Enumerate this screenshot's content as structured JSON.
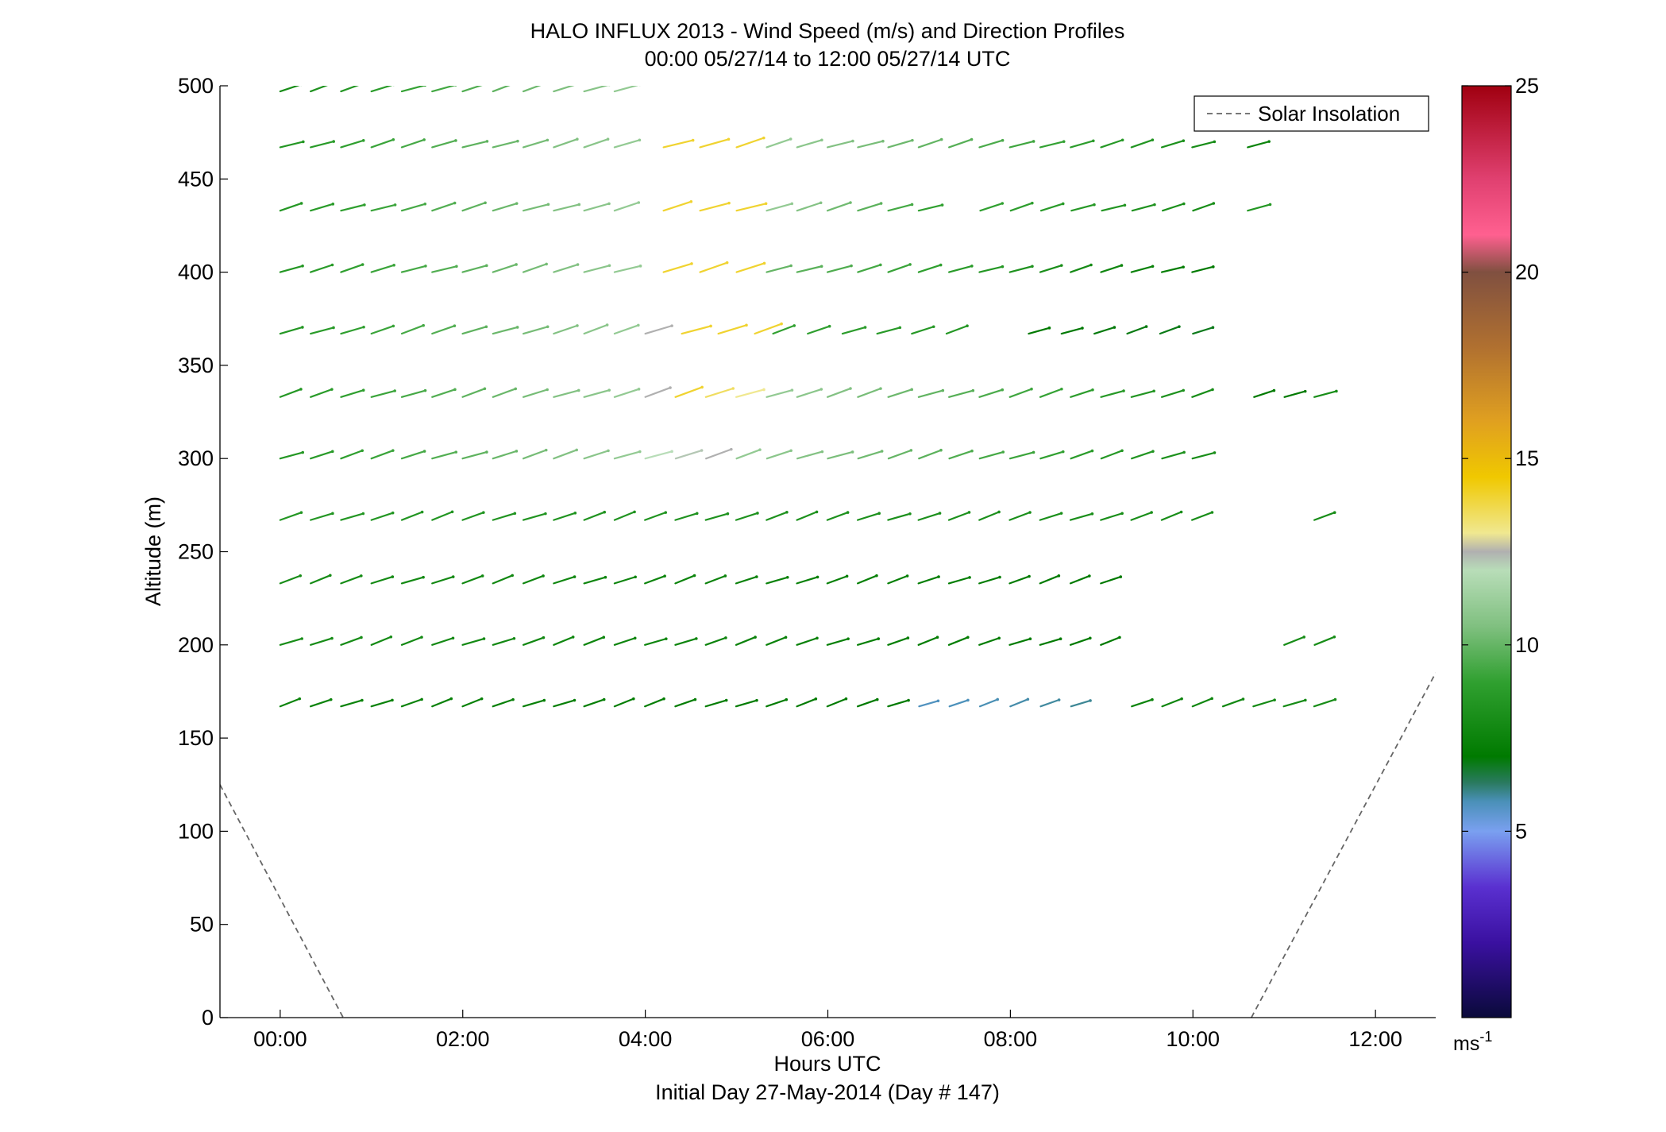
{
  "chart_data": {
    "type": "wind-barb-profile",
    "title": "HALO INFLUX 2013 - Wind Speed (m/s) and Direction Profiles",
    "subtitle": "00:00 05/27/14 to 12:00 05/27/14  UTC",
    "xlabel": "Hours UTC",
    "xlabel2": "Initial Day 27-May-2014 (Day # 147)",
    "ylabel": "Altitude (m)",
    "xlim_hours": [
      -0.66,
      12.66
    ],
    "ylim": [
      0,
      500
    ],
    "x_ticks": [
      {
        "hour": 0,
        "label": "00:00"
      },
      {
        "hour": 2,
        "label": "02:00"
      },
      {
        "hour": 4,
        "label": "04:00"
      },
      {
        "hour": 6,
        "label": "06:00"
      },
      {
        "hour": 8,
        "label": "08:00"
      },
      {
        "hour": 10,
        "label": "10:00"
      },
      {
        "hour": 12,
        "label": "12:00"
      }
    ],
    "y_ticks": [
      0,
      50,
      100,
      150,
      200,
      250,
      300,
      350,
      400,
      450,
      500
    ],
    "colorbar": {
      "min": 0,
      "max": 25,
      "ticks": [
        5,
        10,
        15,
        20,
        25
      ],
      "unit_base": "ms",
      "unit_exp": "-1",
      "stops": [
        {
          "v": 0,
          "c": "#0a0a3a"
        },
        {
          "v": 2,
          "c": "#3a10a0"
        },
        {
          "v": 3.5,
          "c": "#5a30d0"
        },
        {
          "v": 5,
          "c": "#7aa0f0"
        },
        {
          "v": 5.8,
          "c": "#4a90b8"
        },
        {
          "v": 6.3,
          "c": "#2a7a60"
        },
        {
          "v": 7,
          "c": "#007a00"
        },
        {
          "v": 9,
          "c": "#30a030"
        },
        {
          "v": 10.5,
          "c": "#80c080"
        },
        {
          "v": 12,
          "c": "#b8ddb8"
        },
        {
          "v": 12.5,
          "c": "#b0b0b0"
        },
        {
          "v": 13,
          "c": "#f0e890"
        },
        {
          "v": 14.5,
          "c": "#f0c800"
        },
        {
          "v": 16,
          "c": "#e0a020"
        },
        {
          "v": 18,
          "c": "#b07030"
        },
        {
          "v": 20,
          "c": "#805040"
        },
        {
          "v": 21,
          "c": "#ff6090"
        },
        {
          "v": 22.5,
          "c": "#e04070"
        },
        {
          "v": 25,
          "c": "#a00010"
        }
      ]
    },
    "legend": {
      "label": "Solar Insolation",
      "position": "top-right",
      "style": "dashed",
      "color": "#666666"
    },
    "solar_insolation": [
      {
        "name": "morning",
        "x_hours": [
          -0.66,
          0.69
        ],
        "y_m": [
          125,
          0
        ]
      },
      {
        "name": "evening",
        "x_hours": [
          10.64,
          12.66
        ],
        "y_m": [
          0,
          185
        ]
      }
    ],
    "altitudes_m": [
      497,
      467,
      433,
      400,
      367,
      333,
      300,
      267,
      233,
      200,
      167
    ],
    "wind_series": [
      {
        "alt": 497,
        "direction_deg": 240,
        "segments": [
          {
            "t_start": 0.0,
            "t_end": 3.5,
            "step": 0.333,
            "spd_start": 8.0,
            "spd_end": 11.0
          }
        ]
      },
      {
        "alt": 467,
        "direction_deg": 242,
        "segments": [
          {
            "t_start": 0.0,
            "t_end": 3.67,
            "step": 0.333,
            "spd_start": 8.5,
            "spd_end": 11.0
          },
          {
            "t_start": 4.2,
            "t_end": 5.0,
            "step": 0.4,
            "spd_start": 14.0,
            "spd_end": 14.0
          },
          {
            "t_start": 5.33,
            "t_end": 10.0,
            "step": 0.333,
            "spd_start": 11.0,
            "spd_end": 8.0
          },
          {
            "t_start": 10.6,
            "t_end": 10.6,
            "step": 1,
            "spd_start": 7.5,
            "spd_end": 7.5
          }
        ]
      },
      {
        "alt": 433,
        "direction_deg": 242,
        "segments": [
          {
            "t_start": 0.0,
            "t_end": 3.67,
            "step": 0.333,
            "spd_start": 8.5,
            "spd_end": 11.0
          },
          {
            "t_start": 4.2,
            "t_end": 5.0,
            "step": 0.4,
            "spd_start": 14.0,
            "spd_end": 14.0
          },
          {
            "t_start": 5.33,
            "t_end": 7.0,
            "step": 0.333,
            "spd_start": 11.0,
            "spd_end": 9.0
          },
          {
            "t_start": 7.67,
            "t_end": 10.0,
            "step": 0.333,
            "spd_start": 9.0,
            "spd_end": 8.0
          },
          {
            "t_start": 10.6,
            "t_end": 10.6,
            "step": 1,
            "spd_start": 8.5,
            "spd_end": 8.5
          }
        ]
      },
      {
        "alt": 400,
        "direction_deg": 242,
        "segments": [
          {
            "t_start": 0.0,
            "t_end": 3.67,
            "step": 0.333,
            "spd_start": 8.5,
            "spd_end": 11.0
          },
          {
            "t_start": 4.2,
            "t_end": 5.0,
            "step": 0.4,
            "spd_start": 14.0,
            "spd_end": 14.0
          },
          {
            "t_start": 5.33,
            "t_end": 10.0,
            "step": 0.333,
            "spd_start": 10.0,
            "spd_end": 7.0
          }
        ]
      },
      {
        "alt": 367,
        "direction_deg": 240,
        "segments": [
          {
            "t_start": 0.0,
            "t_end": 3.67,
            "step": 0.333,
            "spd_start": 8.5,
            "spd_end": 11.0
          },
          {
            "t_start": 4.0,
            "t_end": 4.0,
            "step": 1,
            "spd_start": 12.5,
            "spd_end": 12.5
          },
          {
            "t_start": 4.4,
            "t_end": 5.2,
            "step": 0.4,
            "spd_start": 14.0,
            "spd_end": 14.0
          },
          {
            "t_start": 5.4,
            "t_end": 7.3,
            "step": 0.38,
            "spd_start": 9.0,
            "spd_end": 8.5
          },
          {
            "t_start": 8.2,
            "t_end": 10.0,
            "step": 0.36,
            "spd_start": 7.0,
            "spd_end": 6.8
          }
        ]
      },
      {
        "alt": 333,
        "direction_deg": 240,
        "segments": [
          {
            "t_start": 0.0,
            "t_end": 3.67,
            "step": 0.333,
            "spd_start": 8.5,
            "spd_end": 11.0
          },
          {
            "t_start": 4.0,
            "t_end": 4.0,
            "step": 1,
            "spd_start": 12.5,
            "spd_end": 12.5
          },
          {
            "t_start": 4.33,
            "t_end": 5.0,
            "step": 0.333,
            "spd_start": 14.0,
            "spd_end": 13.0
          },
          {
            "t_start": 5.33,
            "t_end": 10.0,
            "step": 0.333,
            "spd_start": 11.0,
            "spd_end": 8.0
          },
          {
            "t_start": 10.67,
            "t_end": 11.0,
            "step": 0.333,
            "spd_start": 7.0,
            "spd_end": 7.0
          },
          {
            "t_start": 11.33,
            "t_end": 11.33,
            "step": 1,
            "spd_start": 8.0,
            "spd_end": 8.0
          }
        ]
      },
      {
        "alt": 300,
        "direction_deg": 240,
        "segments": [
          {
            "t_start": 0.0,
            "t_end": 3.67,
            "step": 0.333,
            "spd_start": 8.5,
            "spd_end": 11.0
          },
          {
            "t_start": 4.0,
            "t_end": 4.67,
            "step": 0.333,
            "spd_start": 12.0,
            "spd_end": 12.5
          },
          {
            "t_start": 5.0,
            "t_end": 10.0,
            "step": 0.333,
            "spd_start": 11.0,
            "spd_end": 8.0
          }
        ]
      },
      {
        "alt": 267,
        "direction_deg": 238,
        "segments": [
          {
            "t_start": 0.0,
            "t_end": 10.0,
            "step": 0.333,
            "spd_start": 8.5,
            "spd_end": 8.0
          },
          {
            "t_start": 11.33,
            "t_end": 11.33,
            "step": 1,
            "spd_start": 8.0,
            "spd_end": 8.0
          }
        ]
      },
      {
        "alt": 233,
        "direction_deg": 238,
        "segments": [
          {
            "t_start": 0.0,
            "t_end": 9.0,
            "step": 0.333,
            "spd_start": 8.0,
            "spd_end": 7.0
          }
        ]
      },
      {
        "alt": 200,
        "direction_deg": 238,
        "segments": [
          {
            "t_start": 0.0,
            "t_end": 9.0,
            "step": 0.333,
            "spd_start": 8.0,
            "spd_end": 7.0
          },
          {
            "t_start": 11.0,
            "t_end": 11.33,
            "step": 0.333,
            "spd_start": 8.0,
            "spd_end": 8.0
          }
        ]
      },
      {
        "alt": 167,
        "direction_deg": 238,
        "segments": [
          {
            "t_start": 0.0,
            "t_end": 6.67,
            "step": 0.333,
            "spd_start": 7.5,
            "spd_end": 7.0
          },
          {
            "t_start": 7.0,
            "t_end": 8.67,
            "step": 0.333,
            "spd_start": 5.7,
            "spd_end": 6.0
          },
          {
            "t_start": 9.33,
            "t_end": 11.33,
            "step": 0.333,
            "spd_start": 7.5,
            "spd_end": 8.0
          }
        ]
      }
    ]
  }
}
